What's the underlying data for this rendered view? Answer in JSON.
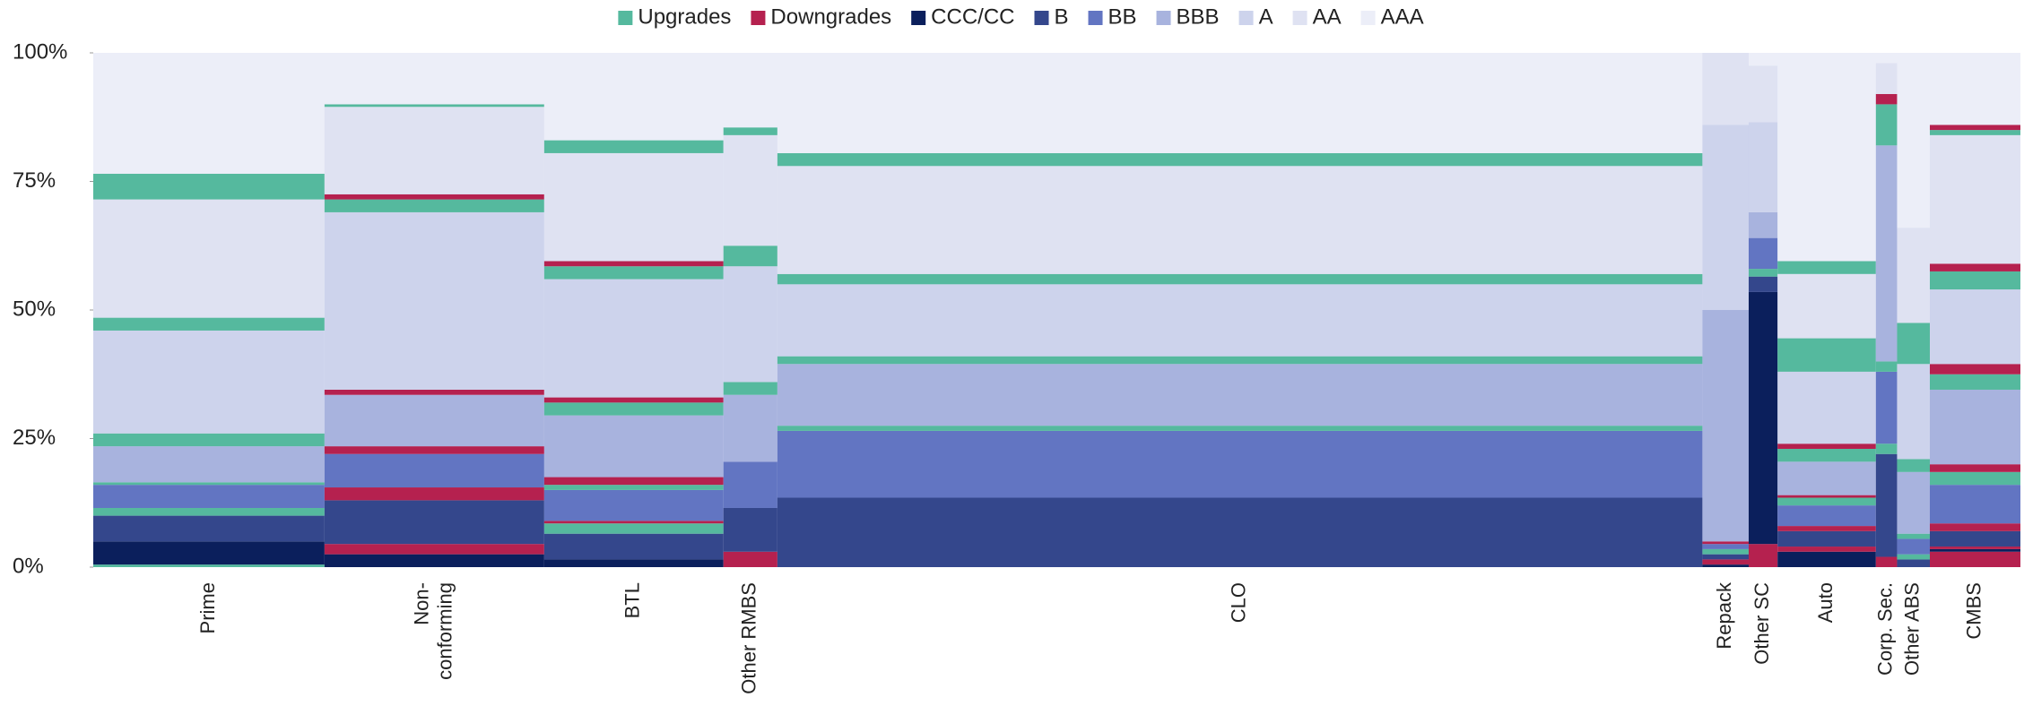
{
  "chart_data": {
    "type": "marimekko",
    "series": [
      {
        "name": "Upgrades",
        "color": "#55b99e"
      },
      {
        "name": "Downgrades",
        "color": "#b5214f"
      },
      {
        "name": "CCC/CC",
        "color": "#0b1f5c"
      },
      {
        "name": "B",
        "color": "#34478c"
      },
      {
        "name": "BB",
        "color": "#6275c2"
      },
      {
        "name": "BBB",
        "color": "#a8b3de"
      },
      {
        "name": "A",
        "color": "#cdd3ec"
      },
      {
        "name": "AA",
        "color": "#dfe2f2"
      },
      {
        "name": "AAA",
        "color": "#eceef8"
      }
    ],
    "categories": [
      "Prime",
      "Non- conforming",
      "BTL",
      "Other RMBS",
      "CLO",
      "Repack",
      "Other SC",
      "Auto",
      "Corp. Sec.",
      "Other ABS",
      "CMBS"
    ],
    "widths": [
      12.0,
      11.4,
      9.3,
      2.8,
      48.0,
      2.4,
      1.5,
      5.1,
      1.1,
      1.7,
      4.7
    ],
    "stacks": [
      [
        [
          0,
          0.5
        ],
        [
          2,
          4.5
        ],
        [
          3,
          5
        ],
        [
          0,
          1.5
        ],
        [
          4,
          4.5
        ],
        [
          0,
          0.5
        ],
        [
          5,
          7
        ],
        [
          0,
          2.5
        ],
        [
          6,
          20
        ],
        [
          0,
          2.5
        ],
        [
          7,
          23
        ],
        [
          0,
          5
        ],
        [
          8,
          23.5
        ]
      ],
      [
        [
          2,
          2.5
        ],
        [
          1,
          2
        ],
        [
          3,
          8.5
        ],
        [
          1,
          2.5
        ],
        [
          4,
          6.5
        ],
        [
          1,
          1.5
        ],
        [
          5,
          10
        ],
        [
          1,
          1
        ],
        [
          6,
          34.5
        ],
        [
          0,
          2.5
        ],
        [
          1,
          1
        ],
        [
          7,
          17
        ],
        [
          0,
          0.5
        ],
        [
          8,
          10
        ]
      ],
      [
        [
          2,
          1.5
        ],
        [
          3,
          5
        ],
        [
          0,
          2
        ],
        [
          1,
          0.5
        ],
        [
          4,
          6
        ],
        [
          0,
          1
        ],
        [
          1,
          1.5
        ],
        [
          5,
          12
        ],
        [
          0,
          2.5
        ],
        [
          1,
          1
        ],
        [
          6,
          23
        ],
        [
          0,
          2.5
        ],
        [
          1,
          1
        ],
        [
          7,
          21
        ],
        [
          0,
          2.5
        ],
        [
          8,
          17
        ]
      ],
      [
        [
          1,
          3
        ],
        [
          3,
          8.5
        ],
        [
          4,
          9
        ],
        [
          5,
          13
        ],
        [
          0,
          2.5
        ],
        [
          6,
          22.5
        ],
        [
          0,
          4
        ],
        [
          7,
          21.5
        ],
        [
          0,
          1.5
        ],
        [
          8,
          14.5
        ]
      ],
      [
        [
          3,
          13.5
        ],
        [
          4,
          13
        ],
        [
          0,
          1
        ],
        [
          5,
          12
        ],
        [
          0,
          1.5
        ],
        [
          6,
          14
        ],
        [
          0,
          2
        ],
        [
          7,
          21
        ],
        [
          0,
          2.5
        ],
        [
          8,
          19.5
        ]
      ],
      [
        [
          2,
          0.5
        ],
        [
          1,
          1
        ],
        [
          3,
          1
        ],
        [
          0,
          1
        ],
        [
          4,
          1
        ],
        [
          1,
          0.5
        ],
        [
          5,
          45
        ],
        [
          6,
          36
        ],
        [
          7,
          14
        ]
      ],
      [
        [
          1,
          4.5
        ],
        [
          2,
          49
        ],
        [
          3,
          3
        ],
        [
          0,
          1.5
        ],
        [
          4,
          6
        ],
        [
          5,
          5
        ],
        [
          6,
          17.5
        ],
        [
          7,
          11
        ],
        [
          8,
          2.5
        ]
      ],
      [
        [
          2,
          3
        ],
        [
          1,
          1
        ],
        [
          3,
          3
        ],
        [
          1,
          1
        ],
        [
          4,
          4
        ],
        [
          0,
          1.5
        ],
        [
          1,
          0.5
        ],
        [
          5,
          6.5
        ],
        [
          0,
          2.5
        ],
        [
          1,
          1
        ],
        [
          6,
          14
        ],
        [
          0,
          6.5
        ],
        [
          7,
          12.5
        ],
        [
          0,
          2.5
        ],
        [
          8,
          40.5
        ]
      ],
      [
        [
          1,
          2
        ],
        [
          3,
          20
        ],
        [
          0,
          2
        ],
        [
          4,
          14
        ],
        [
          0,
          2
        ],
        [
          5,
          42
        ],
        [
          0,
          8
        ],
        [
          1,
          2
        ],
        [
          7,
          6
        ],
        [
          8,
          2
        ]
      ],
      [
        [
          3,
          1.5
        ],
        [
          0,
          1
        ],
        [
          4,
          3
        ],
        [
          0,
          1
        ],
        [
          5,
          12
        ],
        [
          0,
          2.5
        ],
        [
          6,
          18.5
        ],
        [
          0,
          8
        ],
        [
          7,
          18.5
        ],
        [
          8,
          34
        ]
      ],
      [
        [
          1,
          3
        ],
        [
          2,
          0.5
        ],
        [
          1,
          0.5
        ],
        [
          3,
          3
        ],
        [
          1,
          1.5
        ],
        [
          4,
          7.5
        ],
        [
          0,
          2.5
        ],
        [
          1,
          1.5
        ],
        [
          5,
          14.5
        ],
        [
          0,
          3
        ],
        [
          1,
          2
        ],
        [
          6,
          14.5
        ],
        [
          0,
          3.5
        ],
        [
          1,
          1.5
        ],
        [
          7,
          25
        ],
        [
          0,
          1
        ],
        [
          1,
          1
        ],
        [
          8,
          14
        ]
      ]
    ],
    "ylim": [
      0,
      100
    ],
    "yticks": [
      {
        "value": 0,
        "label": "0%"
      },
      {
        "value": 25,
        "label": "25%"
      },
      {
        "value": 50,
        "label": "50%"
      },
      {
        "value": 75,
        "label": "75%"
      },
      {
        "value": 100,
        "label": "100%"
      }
    ],
    "legend": "top"
  }
}
